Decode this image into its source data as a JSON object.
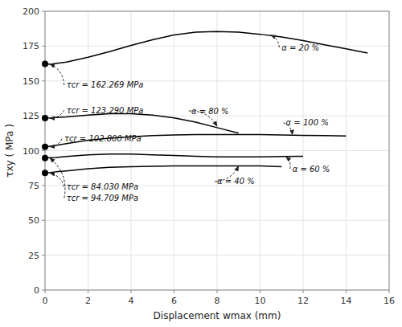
{
  "chart_data": {
    "type": "line",
    "title": "",
    "xlabel": "Displacement wmax (mm)",
    "ylabel": "τxy ( MPa )",
    "xlim": [
      0,
      16
    ],
    "ylim": [
      0,
      200
    ],
    "xticks": [
      0,
      2,
      4,
      6,
      8,
      10,
      12,
      14,
      16
    ],
    "yticks": [
      0,
      25,
      50,
      75,
      100,
      125,
      150,
      175,
      200
    ],
    "grid": true,
    "series": [
      {
        "color": "black",
        "line_style": "solid",
        "x": [
          0.0,
          0.25,
          0.5,
          1.0,
          2.0,
          3.0,
          4.0,
          5.0,
          6.0,
          7.0,
          8.0,
          9.0,
          10.0,
          11.0,
          12.0,
          13.0,
          14.0,
          15.0
        ],
        "values": [
          162.269,
          162.0,
          162.5,
          163.5,
          167.0,
          171.0,
          175.5,
          179.5,
          183.0,
          185.0,
          185.5,
          185.0,
          183.5,
          181.5,
          179.0,
          176.0,
          173.0,
          170.0
        ]
      },
      {
        "color": "black",
        "line_style": "solid",
        "x": [
          0.0,
          0.25,
          0.5,
          1.0,
          2.0,
          3.0,
          4.0,
          5.0,
          6.0,
          7.0,
          8.0,
          9.0
        ],
        "values": [
          123.29,
          123.5,
          123.8,
          124.2,
          125.5,
          126.5,
          126.5,
          125.5,
          123.5,
          120.5,
          116.5,
          112.5
        ]
      },
      {
        "color": "black",
        "line_style": "solid",
        "x": [
          0.0,
          0.25,
          0.5,
          1.0,
          2.0,
          3.0,
          4.0,
          5.0,
          6.0,
          7.0,
          8.0,
          9.0,
          10.0,
          11.0,
          12.0,
          13.0,
          14.0
        ],
        "values": [
          102.8,
          103.2,
          103.8,
          105.0,
          107.5,
          109.0,
          110.0,
          110.8,
          111.2,
          111.5,
          111.5,
          111.5,
          111.5,
          111.3,
          111.0,
          110.8,
          110.5
        ]
      },
      {
        "color": "black",
        "line_style": "solid",
        "x": [
          0.0,
          0.25,
          0.5,
          1.0,
          2.0,
          3.0,
          4.0,
          5.0,
          6.0,
          7.0,
          8.0,
          9.0,
          10.0,
          11.0,
          12.0
        ],
        "values": [
          94.709,
          94.9,
          95.1,
          95.8,
          97.0,
          97.5,
          97.5,
          97.0,
          96.5,
          96.0,
          95.5,
          95.5,
          95.5,
          95.8,
          96.0
        ]
      },
      {
        "color": "black",
        "line_style": "solid",
        "x": [
          0.0,
          0.25,
          0.5,
          1.0,
          2.0,
          3.0,
          4.0,
          5.0,
          6.0,
          7.0,
          8.0,
          9.0,
          10.0,
          11.0
        ],
        "values": [
          84.03,
          84.3,
          84.8,
          85.5,
          87.0,
          88.0,
          88.5,
          88.8,
          89.0,
          89.0,
          89.0,
          89.0,
          89.0,
          88.5
        ]
      },
      {
        "type": "scatter",
        "marker": "circle",
        "color": "black",
        "x": [
          0.0,
          0.0,
          0.0,
          0.0,
          0.0
        ],
        "values": [
          162.269,
          123.29,
          102.8,
          94.709,
          84.03
        ]
      }
    ],
    "annotations": [
      {
        "text": "τcr = 162.269 MPa",
        "text_x": 1.0,
        "text_y": 147.0,
        "x": 0.22,
        "y": 162.269
      },
      {
        "text": "τcr = 123.290 MPa",
        "text_x": 1.0,
        "text_y": 129.0,
        "x": 0.22,
        "y": 123.29
      },
      {
        "text": "τcr = 102.800 MPa",
        "text_x": 0.9,
        "text_y": 108.5,
        "x": 0.22,
        "y": 102.8
      },
      {
        "text": "τcr = 84.030 MPa",
        "text_x": 1.0,
        "text_y": 74.0,
        "x": 0.22,
        "y": 84.03
      },
      {
        "text": "τcr = 94.709 MPa",
        "text_x": 1.0,
        "text_y": 66.0,
        "x": 0.22,
        "y": 94.709
      },
      {
        "text": "α = 20 %",
        "text_x": 11.0,
        "text_y": 174.0,
        "x": 10.5,
        "y": 183.0
      },
      {
        "text": "α = 80 %",
        "text_x": 6.8,
        "text_y": 128.5,
        "x": 8.0,
        "y": 117.5
      },
      {
        "text": "α = 100 %",
        "text_x": 11.2,
        "text_y": 120.0,
        "x": 11.5,
        "y": 111.3
      },
      {
        "text": "α = 60 %",
        "text_x": 11.5,
        "text_y": 87.0,
        "x": 11.2,
        "y": 95.7
      },
      {
        "text": "α = 40 %",
        "text_x": 8.0,
        "text_y": 78.0,
        "x": 9.0,
        "y": 89.0
      }
    ]
  }
}
